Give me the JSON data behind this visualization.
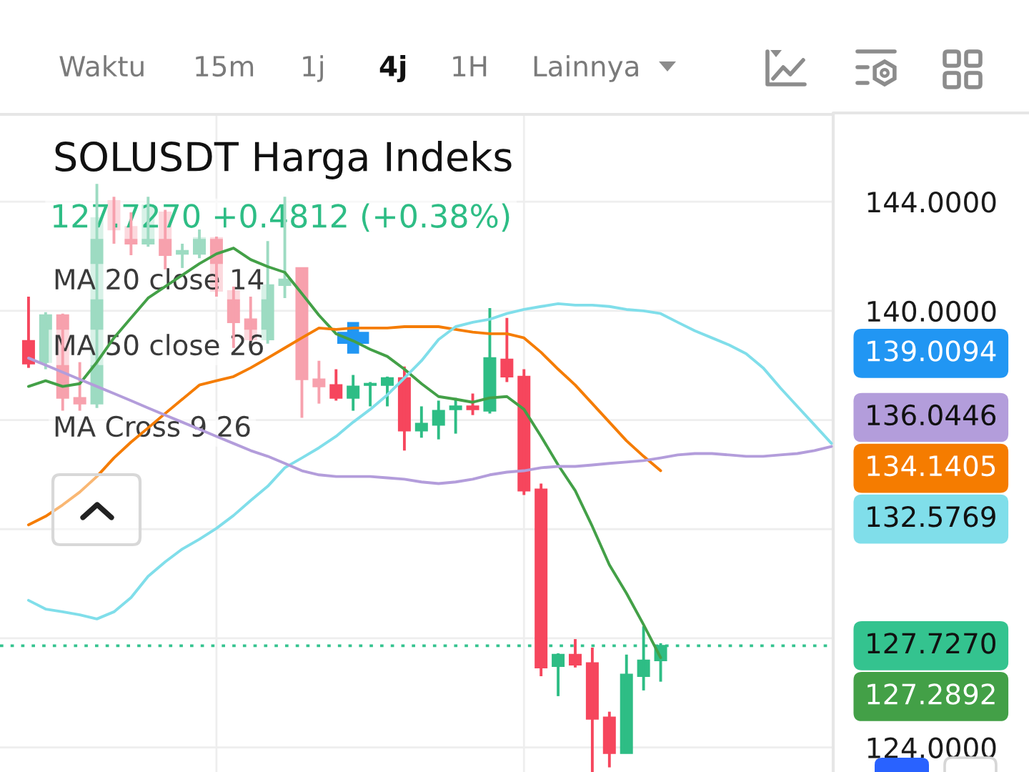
{
  "chart_data": {
    "type": "candlestick",
    "title": "SOLUSDT Harga Indeks",
    "subtitle": "127.7270 +0.4812 (+0.38%)",
    "annotations": [
      "Waktu",
      "15m",
      "1j",
      "4j",
      "1H",
      "Lainnya",
      "MA 20 close 14",
      "MA 50 close 26",
      "MA Cross 9 26",
      "139.0094",
      "136.0446",
      "134.1405",
      "132.5769",
      "127.2892"
    ],
    "categories": [
      null,
      null,
      null,
      null,
      null,
      null,
      null,
      null,
      null,
      null,
      null,
      null,
      null,
      null,
      null,
      null,
      null,
      null,
      null,
      null,
      null,
      null,
      null,
      null,
      null,
      null,
      null,
      null,
      null,
      null,
      null,
      null,
      null,
      null,
      null,
      null,
      null,
      null,
      null,
      null,
      null,
      null,
      null,
      null,
      null,
      null,
      null,
      null
    ],
    "ohlc": [
      [
        138.9,
        140.52,
        137.91,
        138.07
      ],
      [
        138.12,
        139.95,
        137.86,
        139.84
      ],
      [
        139.84,
        139.9,
        136.34,
        136.81
      ],
      [
        136.81,
        138.12,
        136.34,
        136.6
      ],
      [
        136.6,
        144.65,
        136.44,
        143.4
      ],
      [
        144.03,
        144.18,
        142.46,
        142.98
      ],
      [
        143.08,
        143.61,
        142.04,
        142.46
      ],
      [
        142.46,
        144.18,
        142.35,
        143.87
      ],
      [
        143.61,
        143.7,
        141.52,
        142.04
      ],
      [
        142.09,
        142.46,
        141.57,
        142.2
      ],
      [
        142.09,
        142.98,
        141.93,
        142.67
      ],
      [
        142.67,
        142.72,
        140.52,
        140.73
      ],
      [
        140.73,
        140.89,
        138.64,
        139.58
      ],
      [
        139.69,
        140.52,
        138.9,
        138.95
      ],
      [
        138.95,
        142.56,
        138.8,
        140.94
      ],
      [
        140.94,
        144.18,
        140.47,
        141.15
      ],
      [
        141.57,
        141.57,
        136.08,
        137.49
      ],
      [
        137.49,
        138.17,
        136.6,
        137.23
      ],
      [
        137.28,
        137.86,
        136.71,
        136.81
      ],
      [
        136.81,
        137.65,
        136.34,
        137.23
      ],
      [
        137.28,
        137.39,
        136.5,
        137.33
      ],
      [
        137.28,
        137.59,
        136.5,
        137.54
      ],
      [
        137.54,
        137.96,
        134.88,
        135.61
      ],
      [
        135.61,
        136.5,
        135.35,
        135.87
      ],
      [
        135.82,
        136.71,
        135.29,
        136.34
      ],
      [
        136.39,
        136.81,
        135.5,
        136.5
      ],
      [
        136.5,
        136.97,
        136.18,
        136.39
      ],
      [
        136.34,
        140.1,
        136.24,
        138.27
      ],
      [
        138.22,
        139.74,
        137.39,
        137.59
      ],
      [
        137.59,
        137.86,
        133.25,
        133.41
      ],
      [
        133.46,
        133.67,
        126.61,
        126.93
      ],
      [
        126.98,
        127.45,
        125.88,
        127.4
      ],
      [
        127.4,
        127.97,
        126.93,
        127.03
      ],
      [
        127.09,
        127.66,
        123.1,
        125.05
      ],
      [
        125.1,
        125.31,
        123.27,
        123.79
      ],
      [
        123.79,
        127.4,
        123.79,
        126.67
      ],
      [
        126.61,
        128.44,
        126.09,
        127.19
      ],
      [
        127.19,
        127.82,
        126.41,
        127.727
      ],
      null,
      null,
      null,
      null,
      null,
      null,
      null,
      null,
      null,
      null
    ],
    "colors": [
      "#f6465d",
      "#9ddbc2",
      "#f7a1ad",
      "#f7a1ad",
      "#9ddbc2",
      "#f7a1ad",
      "#f7a1ad",
      "#9ddbc2",
      "#f7a1ad",
      "#9ddbc2",
      "#9ddbc2",
      "#f7a1ad",
      "#f7a1ad",
      "#f7a1ad",
      "#9ddbc2",
      "#9ddbc2",
      "#f7a1ad",
      "#f7a1ad",
      "#f6465d",
      "#2ebd85",
      "#2ebd85",
      "#2ebd85",
      "#f6465d",
      "#2ebd85",
      "#2ebd85",
      "#2ebd85",
      "#f6465d",
      "#2ebd85",
      "#f6465d",
      "#f6465d",
      "#f6465d",
      "#2ebd85",
      "#f6465d",
      "#f6465d",
      "#f6465d",
      "#2ebd85",
      "#2ebd85",
      "#2ebd85",
      null,
      null,
      null,
      null,
      null,
      null,
      null,
      null,
      null,
      null
    ],
    "series": [
      {
        "type": "line",
        "color": "#43a047",
        "values": [
          137.23,
          137.44,
          137.23,
          137.33,
          138.12,
          139.01,
          139.74,
          140.47,
          140.89,
          141.31,
          141.73,
          142.09,
          142.3,
          141.88,
          141.62,
          141.41,
          140.63,
          139.84,
          139.16,
          138.9,
          138.59,
          138.33,
          137.86,
          137.33,
          136.86,
          136.76,
          136.65,
          136.81,
          136.86,
          136.39,
          135.4,
          134.35,
          133.41,
          132.1,
          130.69,
          129.65,
          128.5,
          127.29,
          null,
          null,
          null,
          null,
          null,
          null,
          null,
          null,
          null,
          null
        ]
      },
      {
        "type": "line",
        "color": "#f57c00",
        "values": [
          132.16,
          132.47,
          132.89,
          133.36,
          133.93,
          134.61,
          135.19,
          135.71,
          136.24,
          136.76,
          137.28,
          137.44,
          137.59,
          137.91,
          138.27,
          138.64,
          139.01,
          139.37,
          139.32,
          139.37,
          139.37,
          139.37,
          139.42,
          139.42,
          139.42,
          139.32,
          139.22,
          139.16,
          139.16,
          139.01,
          138.48,
          137.86,
          137.28,
          136.6,
          135.92,
          135.24,
          134.67,
          134.14,
          null,
          null,
          null,
          null,
          null,
          null,
          null,
          null,
          null,
          null
        ]
      },
      {
        "type": "line",
        "color": "#80deea",
        "values": [
          129.39,
          129.07,
          128.97,
          128.86,
          128.71,
          128.97,
          129.49,
          130.27,
          130.8,
          131.27,
          131.63,
          132.03,
          132.5,
          133.05,
          133.57,
          134.25,
          134.61,
          134.98,
          135.4,
          135.92,
          136.39,
          136.92,
          137.54,
          138.17,
          138.95,
          139.42,
          139.58,
          139.69,
          139.9,
          140.05,
          140.16,
          140.26,
          140.21,
          140.21,
          140.16,
          140.05,
          140.0,
          139.9,
          139.58,
          139.27,
          139.01,
          138.75,
          138.43,
          137.91,
          137.18,
          136.5,
          135.82,
          135.14
        ]
      },
      {
        "type": "line",
        "color": "#b39ddb",
        "values": [
          138.27,
          138.01,
          137.75,
          137.49,
          137.23,
          136.97,
          136.71,
          136.44,
          136.18,
          135.92,
          135.66,
          135.4,
          135.14,
          134.88,
          134.67,
          134.41,
          134.14,
          133.99,
          133.93,
          133.93,
          133.93,
          133.88,
          133.83,
          133.73,
          133.67,
          133.73,
          133.83,
          133.99,
          134.09,
          134.14,
          134.25,
          134.3,
          134.3,
          134.35,
          134.41,
          134.46,
          134.51,
          134.61,
          134.72,
          134.77,
          134.77,
          134.72,
          134.67,
          134.67,
          134.72,
          134.77,
          134.88,
          135.03
        ]
      },
      {
        "type": "scatter",
        "color": "#2196f3",
        "marker": "cross",
        "values": [
          null,
          null,
          null,
          null,
          null,
          null,
          null,
          null,
          null,
          null,
          null,
          null,
          null,
          null,
          null,
          null,
          null,
          null,
          null,
          139.01,
          null,
          null,
          null,
          null,
          null,
          null,
          null,
          null,
          null,
          null,
          null,
          null,
          null,
          null,
          null,
          null,
          null,
          null,
          null,
          null,
          null,
          null,
          null,
          null,
          null,
          null,
          null,
          null
        ]
      }
    ],
    "ref_lines": [
      {
        "axis": "y",
        "value": 127.727,
        "label": "127.7270",
        "color": "#34c38f",
        "line_style": "dotted"
      }
    ],
    "ylim": [
      123.1,
      147.2
    ],
    "yticks": [
      {
        "value": 124,
        "label": "124.0000"
      },
      {
        "value": 128,
        "label": null
      },
      {
        "value": 132,
        "label": null
      },
      {
        "value": 136,
        "label": null
      },
      {
        "value": 140,
        "label": "140.0000"
      },
      {
        "value": 144,
        "label": "144.0000"
      }
    ],
    "grid": "y",
    "tick_labels": "y"
  }
}
